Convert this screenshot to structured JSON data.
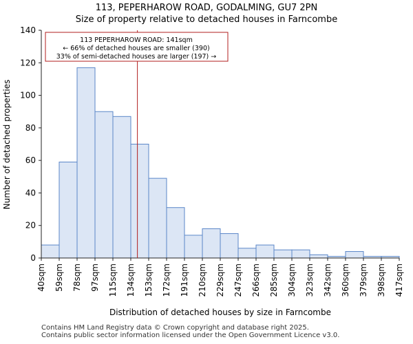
{
  "chart_data": {
    "type": "bar",
    "title": "113, PEPERHAROW ROAD, GODALMING, GU7 2PN",
    "subtitle": "Size of property relative to detached houses in Farncombe",
    "xlabel": "Distribution of detached houses by size in Farncombe",
    "ylabel": "Number of detached properties",
    "bin_edges": [
      40,
      59,
      78,
      97,
      115,
      134,
      153,
      172,
      191,
      210,
      229,
      247,
      266,
      285,
      304,
      323,
      342,
      360,
      379,
      398,
      417
    ],
    "tick_labels": [
      "40sqm",
      "59sqm",
      "78sqm",
      "97sqm",
      "115sqm",
      "134sqm",
      "153sqm",
      "172sqm",
      "191sqm",
      "210sqm",
      "229sqm",
      "247sqm",
      "266sqm",
      "285sqm",
      "304sqm",
      "323sqm",
      "342sqm",
      "360sqm",
      "379sqm",
      "398sqm",
      "417sqm"
    ],
    "values": [
      8,
      59,
      117,
      90,
      87,
      70,
      49,
      31,
      14,
      18,
      15,
      6,
      8,
      5,
      5,
      2,
      1,
      4,
      1,
      1
    ],
    "ylim": [
      0,
      140
    ],
    "yticks": [
      0,
      20,
      40,
      60,
      80,
      100,
      120,
      140
    ],
    "marker_index": 5.37,
    "annotation": {
      "line1": "113 PEPERHAROW ROAD: 141sqm",
      "line2": "← 66% of detached houses are smaller (390)",
      "line3": "33% of semi-detached houses are larger (197) →"
    },
    "colors": {
      "bar_fill": "#dce6f5",
      "bar_edge": "#5a86c8",
      "marker": "#b01c1c",
      "axis": "#222222"
    }
  },
  "footer": {
    "line1": "Contains HM Land Registry data © Crown copyright and database right 2025.",
    "line2": "Contains public sector information licensed under the Open Government Licence v3.0."
  }
}
